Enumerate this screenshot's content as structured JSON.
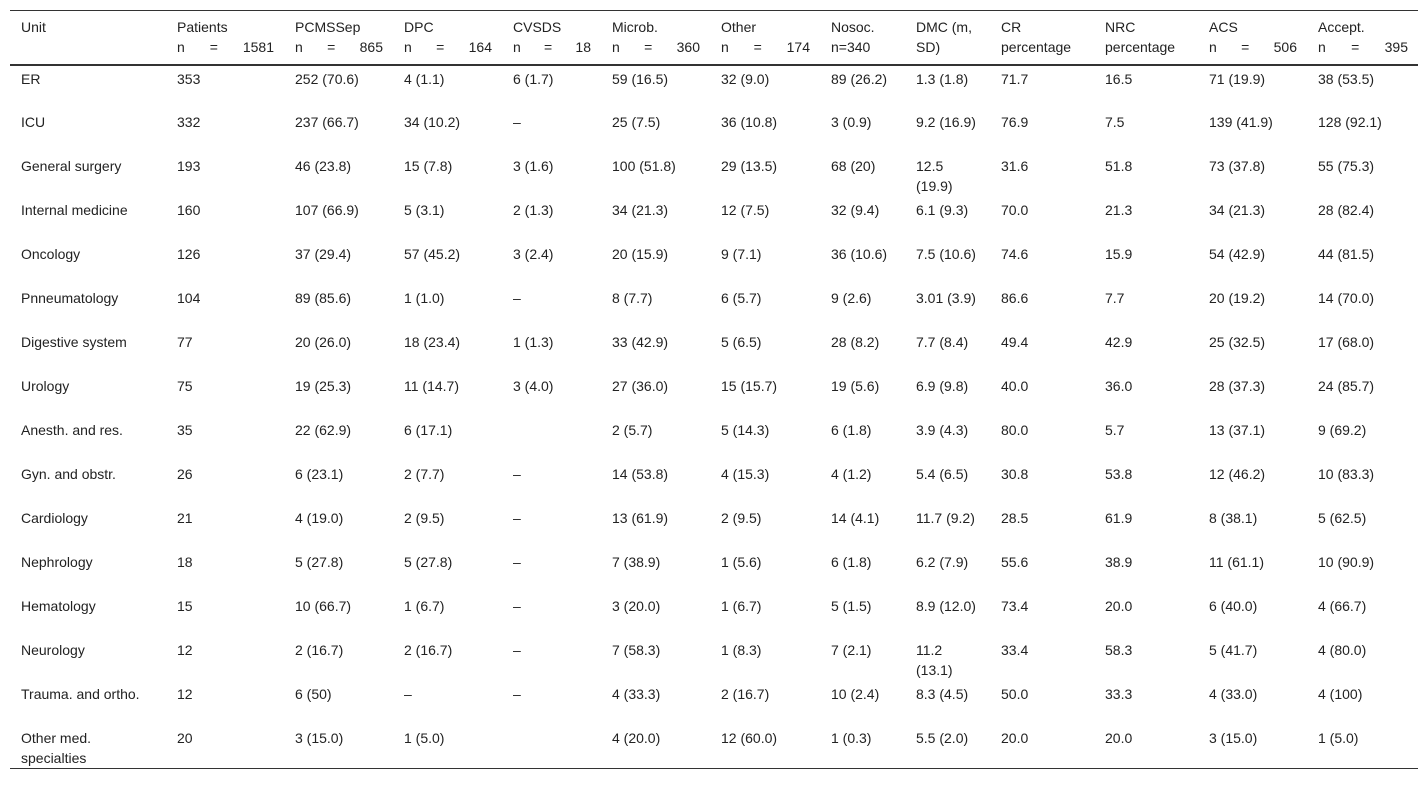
{
  "table": {
    "header": [
      [
        "Unit"
      ],
      [
        "Patients",
        "n = 1581"
      ],
      [
        "PCMSSep",
        "n = 865"
      ],
      [
        "DPC",
        "n = 164"
      ],
      [
        "CVSDS",
        "n = 18"
      ],
      [
        "Microb.",
        "n = 360"
      ],
      [
        "Other",
        "n = 174"
      ],
      [
        "Nosoc.",
        "n=340"
      ],
      [
        "DMC (m,",
        "SD)"
      ],
      [
        "CR",
        "percentage"
      ],
      [
        "NRC",
        "percentage"
      ],
      [
        "ACS",
        "n = 506"
      ],
      [
        "Accept.",
        "n = 395"
      ]
    ],
    "rows": [
      [
        "ER",
        "353",
        "252 (70.6)",
        "4 (1.1)",
        "6 (1.7)",
        "59 (16.5)",
        "32 (9.0)",
        "89 (26.2)",
        "1.3 (1.8)",
        "71.7",
        "16.5",
        "71 (19.9)",
        "38 (53.5)"
      ],
      [
        "ICU",
        "332",
        "237 (66.7)",
        "34 (10.2)",
        "–",
        "25 (7.5)",
        "36 (10.8)",
        "3 (0.9)",
        "9.2 (16.9)",
        "76.9",
        "7.5",
        "139 (41.9)",
        "128 (92.1)"
      ],
      [
        "General surgery",
        "193",
        "46 (23.8)",
        "15 (7.8)",
        "3 (1.6)",
        "100 (51.8)",
        "29 (13.5)",
        "68 (20)",
        "12.5 (19.9)",
        "31.6",
        "51.8",
        "73 (37.8)",
        "55 (75.3)"
      ],
      [
        "Internal medicine",
        "160",
        "107 (66.9)",
        "5 (3.1)",
        "2 (1.3)",
        "34 (21.3)",
        "12 (7.5)",
        "32 (9.4)",
        "6.1 (9.3)",
        "70.0",
        "21.3",
        "34 (21.3)",
        "28 (82.4)"
      ],
      [
        "Oncology",
        "126",
        "37 (29.4)",
        "57 (45.2)",
        "3 (2.4)",
        "20 (15.9)",
        "9 (7.1)",
        "36 (10.6)",
        "7.5 (10.6)",
        "74.6",
        "15.9",
        "54 (42.9)",
        "44 (81.5)"
      ],
      [
        "Pnneumatology",
        "104",
        "89 (85.6)",
        "1 (1.0)",
        "–",
        "8 (7.7)",
        "6 (5.7)",
        "9 (2.6)",
        "3.01 (3.9)",
        "86.6",
        "7.7",
        "20 (19.2)",
        "14 (70.0)"
      ],
      [
        "Digestive system",
        "77",
        "20 (26.0)",
        "18 (23.4)",
        "1 (1.3)",
        "33 (42.9)",
        "5 (6.5)",
        "28 (8.2)",
        "7.7 (8.4)",
        "49.4",
        "42.9",
        "25 (32.5)",
        "17 (68.0)"
      ],
      [
        "Urology",
        "75",
        "19 (25.3)",
        "11 (14.7)",
        "3 (4.0)",
        "27 (36.0)",
        "15 (15.7)",
        "19 (5.6)",
        "6.9 (9.8)",
        "40.0",
        "36.0",
        "28 (37.3)",
        "24 (85.7)"
      ],
      [
        "Anesth. and res.",
        "35",
        "22 (62.9)",
        "6 (17.1)",
        null,
        "2 (5.7)",
        "5 (14.3)",
        "6 (1.8)",
        "3.9 (4.3)",
        "80.0",
        "5.7",
        "13 (37.1)",
        "9 (69.2)"
      ],
      [
        "Gyn. and obstr.",
        "26",
        "6 (23.1)",
        "2 (7.7)",
        "–",
        "14 (53.8)",
        "4 (15.3)",
        "4 (1.2)",
        "5.4 (6.5)",
        "30.8",
        "53.8",
        "12 (46.2)",
        "10 (83.3)"
      ],
      [
        "Cardiology",
        "21",
        "4 (19.0)",
        "2 (9.5)",
        "–",
        "13 (61.9)",
        "2 (9.5)",
        "14 (4.1)",
        "11.7 (9.2)",
        "28.5",
        "61.9",
        "8 (38.1)",
        "5 (62.5)"
      ],
      [
        "Nephrology",
        "18",
        "5 (27.8)",
        "5 (27.8)",
        "–",
        "7 (38.9)",
        "1 (5.6)",
        "6 (1.8)",
        "6.2 (7.9)",
        "55.6",
        "38.9",
        "11 (61.1)",
        "10 (90.9)"
      ],
      [
        "Hematology",
        "15",
        "10 (66.7)",
        "1 (6.7)",
        "–",
        "3 (20.0)",
        "1 (6.7)",
        "5 (1.5)",
        "8.9 (12.0)",
        "73.4",
        "20.0",
        "6 (40.0)",
        "4 (66.7)"
      ],
      [
        "Neurology",
        "12",
        "2 (16.7)",
        "2 (16.7)",
        "–",
        "7 (58.3)",
        "1 (8.3)",
        "7 (2.1)",
        "11.2 (13.1)",
        "33.4",
        "58.3",
        "5 (41.7)",
        "4 (80.0)"
      ],
      [
        "Trauma. and ortho.",
        "12",
        "6 (50)",
        "–",
        "–",
        "4 (33.3)",
        "2 (16.7)",
        "10 (2.4)",
        "8.3 (4.5)",
        "50.0",
        "33.3",
        "4 (33.0)",
        "4 (100)"
      ],
      [
        "Other med. specialties",
        "20",
        "3 (15.0)",
        "1 (5.0)",
        null,
        "4 (20.0)",
        "12 (60.0)",
        "1 (0.3)",
        "5.5 (2.0)",
        "20.0",
        "20.0",
        "3 (15.0)",
        "1 (5.0)"
      ]
    ]
  }
}
